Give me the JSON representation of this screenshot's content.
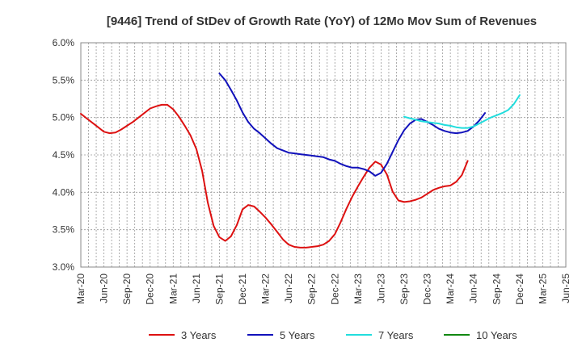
{
  "chart_data": {
    "type": "line",
    "title": "[9446]  Trend of StDev of Growth Rate (YoY) of 12Mo Mov Sum of Revenues",
    "xlabel": "",
    "ylabel": "",
    "ylim": [
      3.0,
      6.0
    ],
    "y_ticks": [
      "3.0%",
      "3.5%",
      "4.0%",
      "4.5%",
      "5.0%",
      "5.5%",
      "6.0%"
    ],
    "x_tick_labels": [
      "Mar-20",
      "Jun-20",
      "Sep-20",
      "Dec-20",
      "Mar-21",
      "Jun-21",
      "Sep-21",
      "Dec-21",
      "Mar-22",
      "Jun-22",
      "Sep-22",
      "Dec-22",
      "Mar-23",
      "Jun-23",
      "Sep-23",
      "Dec-23",
      "Mar-24",
      "Jun-24",
      "Sep-24",
      "Dec-24",
      "Mar-25",
      "Jun-25"
    ],
    "x_range_months": [
      0,
      63
    ],
    "grid": true,
    "legend_position": "bottom",
    "series": [
      {
        "name": "3 Years",
        "color": "#dd1111",
        "start_month": 0,
        "values": [
          5.05,
          4.99,
          4.93,
          4.87,
          4.81,
          4.79,
          4.8,
          4.84,
          4.89,
          4.94,
          5.0,
          5.06,
          5.12,
          5.15,
          5.17,
          5.17,
          5.11,
          5.01,
          4.89,
          4.76,
          4.58,
          4.29,
          3.86,
          3.55,
          3.4,
          3.35,
          3.41,
          3.56,
          3.77,
          3.83,
          3.81,
          3.74,
          3.66,
          3.57,
          3.47,
          3.37,
          3.3,
          3.27,
          3.26,
          3.26,
          3.27,
          3.28,
          3.3,
          3.35,
          3.44,
          3.6,
          3.78,
          3.94,
          4.08,
          4.21,
          4.33,
          4.41,
          4.37,
          4.24,
          4.01,
          3.89,
          3.87,
          3.88,
          3.9,
          3.93,
          3.98,
          4.03,
          4.06,
          4.08,
          4.09,
          4.14,
          4.23,
          4.42
        ]
      },
      {
        "name": "5 Years",
        "color": "#1111bb",
        "start_month": 18,
        "values": [
          5.59,
          5.5,
          5.37,
          5.23,
          5.07,
          4.94,
          4.85,
          4.79,
          4.72,
          4.65,
          4.59,
          4.56,
          4.53,
          4.52,
          4.51,
          4.5,
          4.49,
          4.48,
          4.47,
          4.44,
          4.42,
          4.38,
          4.35,
          4.33,
          4.33,
          4.31,
          4.28,
          4.22,
          4.26,
          4.38,
          4.54,
          4.7,
          4.83,
          4.92,
          4.97,
          4.98,
          4.94,
          4.9,
          4.85,
          4.82,
          4.8,
          4.79,
          4.8,
          4.82,
          4.88,
          4.96,
          5.06
        ]
      },
      {
        "name": "7 Years",
        "color": "#22dddd",
        "start_month": 42,
        "values": [
          5.01,
          4.99,
          4.97,
          4.95,
          4.94,
          4.93,
          4.92,
          4.9,
          4.89,
          4.87,
          4.86,
          4.86,
          4.88,
          4.92,
          4.96,
          5.0,
          5.03,
          5.06,
          5.1,
          5.18,
          5.3
        ]
      },
      {
        "name": "10 Years",
        "color": "#118811",
        "start_month": 42,
        "values": []
      }
    ]
  }
}
